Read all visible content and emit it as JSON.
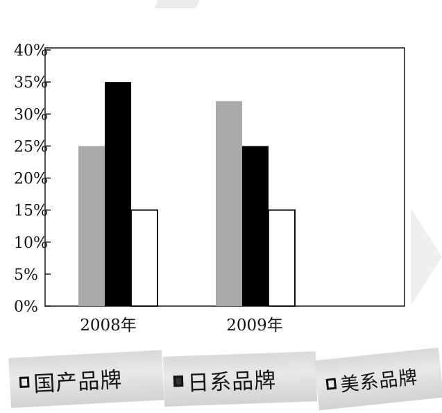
{
  "chart_data": {
    "type": "bar",
    "categories": [
      "2008年",
      "2009年"
    ],
    "series": [
      {
        "name": "国产品牌",
        "values": [
          25,
          32
        ],
        "color": "#a9a9a9"
      },
      {
        "name": "日系品牌",
        "values": [
          35,
          25
        ],
        "color": "#000000"
      },
      {
        "name": "美系品牌",
        "values": [
          15,
          15
        ],
        "color": "#ffffff"
      }
    ],
    "yticks": [
      "0%",
      "5%",
      "10%",
      "15%",
      "20%",
      "25%",
      "30%",
      "35%",
      "40%"
    ],
    "ylim": [
      0,
      40
    ],
    "grid": false,
    "legend_position": "bottom"
  }
}
